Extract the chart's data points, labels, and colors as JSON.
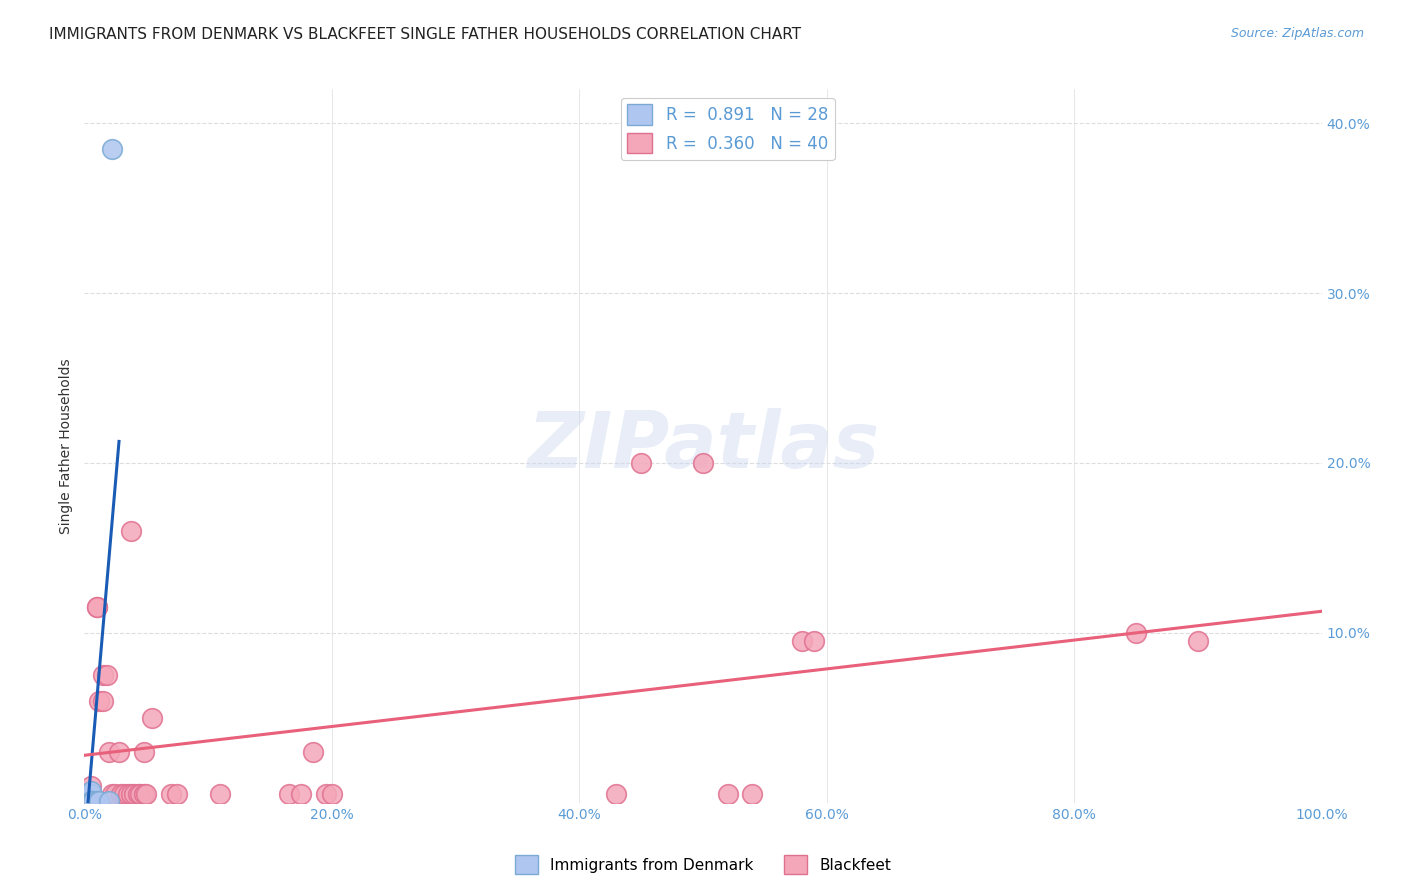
{
  "title": "IMMIGRANTS FROM DENMARK VS BLACKFEET SINGLE FATHER HOUSEHOLDS CORRELATION CHART",
  "source": "Source: ZipAtlas.com",
  "ylabel": "Single Father Households",
  "xlim": [
    0,
    100.0
  ],
  "ylim": [
    0,
    42.0
  ],
  "legend_entry1": "R =  0.891   N = 28",
  "legend_entry2": "R =  0.360   N = 40",
  "watermark": "ZIPatlas",
  "denmark_scatter": [
    [
      0.1,
      0.1
    ],
    [
      0.1,
      0.1
    ],
    [
      0.1,
      0.2
    ],
    [
      0.2,
      0.1
    ],
    [
      0.1,
      0.1
    ],
    [
      0.2,
      0.1
    ],
    [
      0.3,
      0.1
    ],
    [
      0.2,
      0.2
    ],
    [
      0.1,
      0.3
    ],
    [
      0.3,
      0.3
    ],
    [
      0.1,
      0.5
    ],
    [
      0.2,
      0.4
    ],
    [
      0.2,
      0.1
    ],
    [
      0.3,
      0.1
    ],
    [
      0.4,
      0.1
    ],
    [
      0.1,
      0.1
    ],
    [
      0.1,
      0.1
    ],
    [
      0.5,
      0.1
    ],
    [
      0.5,
      0.5
    ],
    [
      0.5,
      0.5
    ],
    [
      0.5,
      0.7
    ],
    [
      0.5,
      0.1
    ],
    [
      0.6,
      0.1
    ],
    [
      0.7,
      0.1
    ],
    [
      1.0,
      0.1
    ],
    [
      1.2,
      0.1
    ],
    [
      2.0,
      0.1
    ],
    [
      2.2,
      38.5
    ]
  ],
  "blackfeet_scatter": [
    [
      0.5,
      1.0
    ],
    [
      1.0,
      11.5
    ],
    [
      1.0,
      11.5
    ],
    [
      1.2,
      6.0
    ],
    [
      1.5,
      6.0
    ],
    [
      1.5,
      7.5
    ],
    [
      1.8,
      7.5
    ],
    [
      2.0,
      3.0
    ],
    [
      2.2,
      0.5
    ],
    [
      2.5,
      0.5
    ],
    [
      2.8,
      3.0
    ],
    [
      3.0,
      0.5
    ],
    [
      3.2,
      0.5
    ],
    [
      3.5,
      0.5
    ],
    [
      3.8,
      16.0
    ],
    [
      3.8,
      0.5
    ],
    [
      4.0,
      0.5
    ],
    [
      4.3,
      0.5
    ],
    [
      4.5,
      0.5
    ],
    [
      4.8,
      3.0
    ],
    [
      4.8,
      0.5
    ],
    [
      5.0,
      0.5
    ],
    [
      5.5,
      5.0
    ],
    [
      7.0,
      0.5
    ],
    [
      7.5,
      0.5
    ],
    [
      11.0,
      0.5
    ],
    [
      16.5,
      0.5
    ],
    [
      17.5,
      0.5
    ],
    [
      18.5,
      3.0
    ],
    [
      19.5,
      0.5
    ],
    [
      20.0,
      0.5
    ],
    [
      43.0,
      0.5
    ],
    [
      45.0,
      20.0
    ],
    [
      50.0,
      20.0
    ],
    [
      52.0,
      0.5
    ],
    [
      54.0,
      0.5
    ],
    [
      58.0,
      9.5
    ],
    [
      59.0,
      9.5
    ],
    [
      85.0,
      10.0
    ],
    [
      90.0,
      9.5
    ]
  ],
  "denmark_line_color": "#1a5cb5",
  "blackfeet_line_color": "#e8607a",
  "scatter_denmark_face": "#aec6f0",
  "scatter_denmark_edge": "#7baad4",
  "scatter_blackfeet_face": "#f4a7b9",
  "scatter_blackfeet_edge": "#e07090",
  "grid_color": "#dddddd",
  "background_color": "#ffffff",
  "title_fontsize": 11,
  "axis_label_fontsize": 10,
  "tick_fontsize": 10,
  "legend_fontsize": 12
}
